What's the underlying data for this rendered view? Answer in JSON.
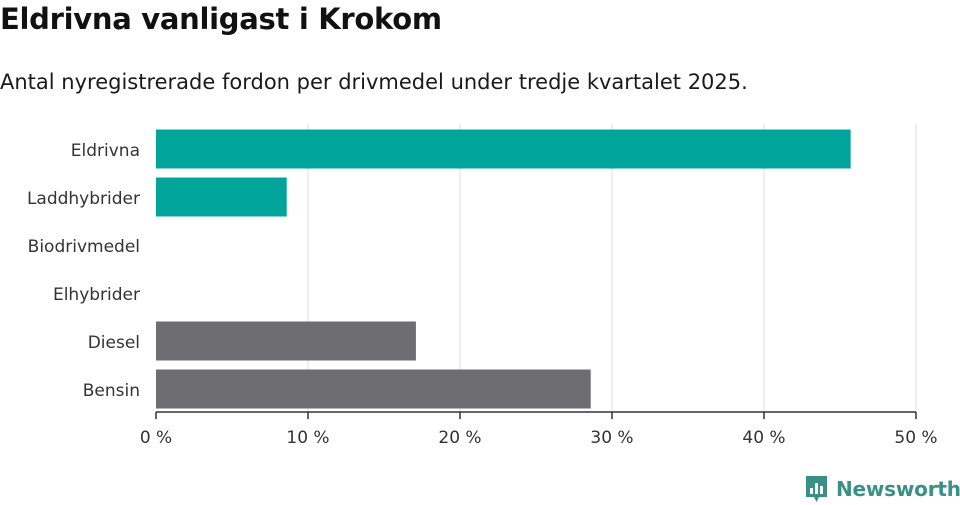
{
  "header": {
    "title": "Eldrivna vanligast i Krokom",
    "subtitle": "Antal nyregistrerade fordon per drivmedel under tredje kvartalet 2025."
  },
  "chart_data": {
    "type": "bar",
    "orientation": "horizontal",
    "categories": [
      "Eldrivna",
      "Laddhybrider",
      "Biodrivmedel",
      "Elhybrider",
      "Diesel",
      "Bensin"
    ],
    "values": [
      45.7,
      8.6,
      0,
      0,
      17.1,
      28.6
    ],
    "colors": [
      "#00a49a",
      "#00a49a",
      "#00a49a",
      "#00a49a",
      "#6e6d72",
      "#6e6d72"
    ],
    "xlim": [
      0,
      50
    ],
    "xticks": [
      0,
      10,
      20,
      30,
      40,
      50
    ],
    "xtick_labels": [
      "0 %",
      "10 %",
      "20 %",
      "30 %",
      "40 %",
      "50 %"
    ],
    "grid": true,
    "xlabel": "",
    "ylabel": ""
  },
  "branding": {
    "logo_text": "Newsworthy",
    "logo_icon": "newsworthy-chart-icon",
    "accent_color": "#3a8f86"
  }
}
